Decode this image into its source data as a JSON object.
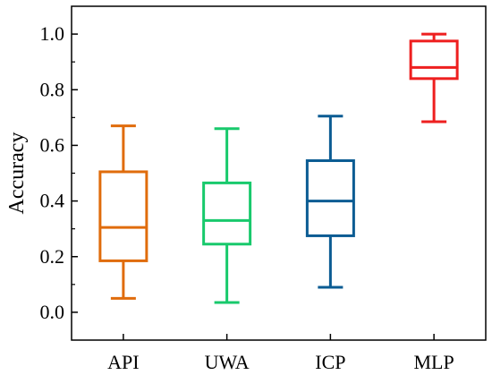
{
  "chart_data": {
    "type": "box",
    "title": "",
    "xlabel": "",
    "ylabel": "Accuracy",
    "ylim": [
      -0.1,
      1.1
    ],
    "yticks": [
      "0.0",
      "0.2",
      "0.4",
      "0.6",
      "0.8",
      "1.0"
    ],
    "categories": [
      "API",
      "UWA",
      "ICP",
      "MLP"
    ],
    "series": [
      {
        "category": "API",
        "min": 0.05,
        "q1": 0.185,
        "median": 0.305,
        "q3": 0.505,
        "max": 0.67,
        "color": "#e06c0c"
      },
      {
        "category": "UWA",
        "min": 0.035,
        "q1": 0.245,
        "median": 0.33,
        "q3": 0.465,
        "max": 0.66,
        "color": "#18c96c"
      },
      {
        "category": "ICP",
        "min": 0.09,
        "q1": 0.275,
        "median": 0.4,
        "q3": 0.545,
        "max": 0.705,
        "color": "#0b5c93"
      },
      {
        "category": "MLP",
        "min": 0.685,
        "q1": 0.84,
        "median": 0.88,
        "q3": 0.975,
        "max": 1.0,
        "color": "#ee1f1f"
      }
    ],
    "grid": false,
    "legend": "none"
  }
}
